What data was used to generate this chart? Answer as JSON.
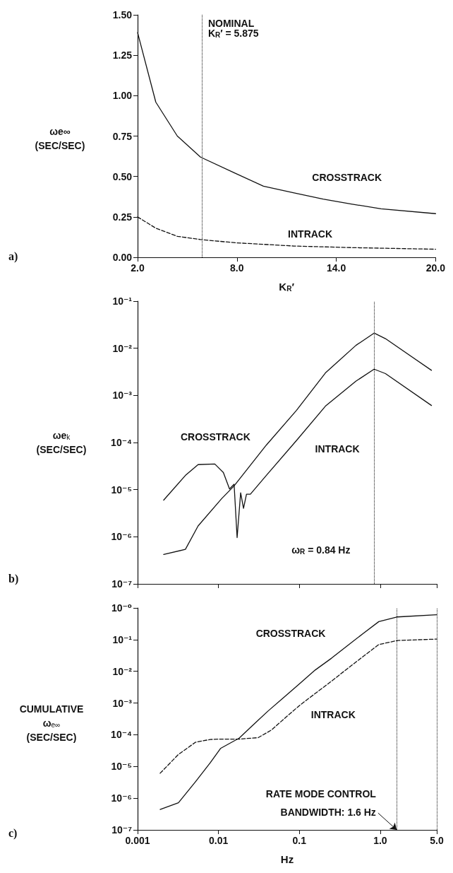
{
  "chart_data": [
    {
      "type": "line",
      "xlabel": "K$_{R}$′",
      "ylabel": "ωe∞\n(SEC/SEC)",
      "xlim": [
        2,
        20
      ],
      "xticks": [
        {
          "value": 2,
          "label": "2.0"
        },
        {
          "value": 8,
          "label": "8.0"
        },
        {
          "value": 14,
          "label": "14.0"
        },
        {
          "value": 20,
          "label": "20.0"
        }
      ],
      "ylim": [
        0,
        1.5
      ],
      "yticks": [
        {
          "value": 0,
          "label": "0.00"
        },
        {
          "value": 0.25,
          "label": "0.25"
        },
        {
          "value": 0.5,
          "label": "0.50"
        },
        {
          "value": 0.75,
          "label": "0.75"
        },
        {
          "value": 1,
          "label": "1.00"
        },
        {
          "value": 1.25,
          "label": "1.25"
        },
        {
          "value": 1.5,
          "label": "1.50"
        }
      ],
      "marker": "none",
      "series": [
        {
          "name": "CROSSTRACK",
          "color": "#111111",
          "line_style": "solid",
          "x": [
            2,
            3.1,
            4.4,
            5.8,
            7.9,
            9.6,
            11.4,
            13.2,
            14.9,
            16.7,
            20
          ],
          "values": [
            1.39,
            0.96,
            0.75,
            0.62,
            0.52,
            0.44,
            0.4,
            0.36,
            0.33,
            0.3,
            0.27
          ]
        },
        {
          "name": "INTRACK",
          "color": "#111111",
          "line_style": "dashed",
          "x": [
            2,
            3.1,
            4.4,
            5.8,
            7.9,
            11.4,
            14.9,
            20
          ],
          "values": [
            0.25,
            0.18,
            0.13,
            0.11,
            0.09,
            0.07,
            0.06,
            0.05
          ]
        }
      ],
      "ref_lines": [
        {
          "axis": "x",
          "value": 5.875,
          "label": "NOMINAL\nK$_{R}$′ = 5.875",
          "color": "#111111",
          "line_style": "dotted"
        }
      ],
      "annotations": [
        "a)"
      ]
    },
    {
      "type": "line",
      "ylabel": "ωe$_{k}$\n(SEC/SEC)",
      "log": "xy",
      "tick_labels": "y",
      "xlim": [
        0.001,
        5
      ],
      "xticks": [
        0.001,
        0.01,
        0.1,
        1,
        5
      ],
      "ylim": [
        1e-07,
        0.1
      ],
      "yticks": [
        {
          "value": 0.1,
          "label": "10⁻¹"
        },
        {
          "value": 0.01,
          "label": "10⁻²"
        },
        {
          "value": 0.001,
          "label": "10⁻³"
        },
        {
          "value": 0.0001,
          "label": "10⁻⁴"
        },
        {
          "value": 1e-05,
          "label": "10⁻⁵"
        },
        {
          "value": 1e-06,
          "label": "10⁻⁶"
        },
        {
          "value": 1e-07,
          "label": "10⁻⁷"
        }
      ],
      "marker": "none",
      "series": [
        {
          "name": "CROSSTRACK",
          "color": "#111111",
          "line_style": "solid",
          "x": [
            0.0021,
            0.0039,
            0.0056,
            0.011,
            0.0156,
            0.039,
            0.092,
            0.21,
            0.5,
            0.84,
            1.16,
            4.3
          ],
          "values": [
            4.2e-07,
            5.4e-07,
            1.7e-06,
            6.5e-06,
            1.2e-05,
            8.8e-05,
            0.00048,
            0.003,
            0.0115,
            0.021,
            0.016,
            0.0034
          ]
        },
        {
          "name": "INTRACK",
          "color": "#111111",
          "line_style": "solid",
          "x": [
            0.0021,
            0.0039,
            0.0056,
            0.009,
            0.0115,
            0.0137,
            0.0156,
            0.017,
            0.0188,
            0.0204,
            0.0222,
            0.0248,
            0.039,
            0.092,
            0.21,
            0.5,
            0.84,
            1.16,
            4.3
          ],
          "values": [
            6e-06,
            2e-05,
            3.4e-05,
            3.5e-05,
            2.3e-05,
            1.03e-05,
            1.3e-05,
            9.6e-07,
            8.6e-06,
            4e-06,
            8e-06,
            8e-06,
            2e-05,
            0.00011,
            0.00059,
            0.002,
            0.0036,
            0.0029,
            0.00061
          ]
        }
      ],
      "ref_lines": [
        {
          "axis": "x",
          "value": 0.84,
          "label": "ω$_{R}$ = 0.84 Hz",
          "color": "#111111",
          "line_style": "dotted"
        }
      ],
      "annotations": [
        "b)"
      ]
    },
    {
      "type": "line",
      "xlabel": "Hz",
      "ylabel": "CUMULATIVE\nω$_{e∞}$\n(SEC/SEC)",
      "log": "xy",
      "xlim": [
        0.001,
        5
      ],
      "xticks": [
        0.001,
        0.01,
        0.1,
        {
          "value": 1,
          "label": "1.0"
        },
        {
          "value": 5,
          "label": "5.0"
        }
      ],
      "ylim": [
        1e-07,
        1
      ],
      "yticks": [
        {
          "value": 1,
          "label": "10⁻⁰"
        },
        {
          "value": 0.1,
          "label": "10⁻¹"
        },
        {
          "value": 0.01,
          "label": "10⁻²"
        },
        {
          "value": 0.001,
          "label": "10⁻³"
        },
        {
          "value": 0.0001,
          "label": "10⁻⁴"
        },
        {
          "value": 1e-05,
          "label": "10⁻⁵"
        },
        {
          "value": 1e-06,
          "label": "10⁻⁶"
        },
        {
          "value": 1e-07,
          "label": "10⁻⁷"
        }
      ],
      "marker": "none",
      "series": [
        {
          "name": "CROSSTRACK",
          "color": "#111111",
          "line_style": "solid",
          "x": [
            0.0019,
            0.0032,
            0.0052,
            0.0079,
            0.0106,
            0.018,
            0.026,
            0.041,
            0.064,
            0.1,
            0.157,
            0.25,
            0.39,
            0.61,
            0.96,
            1.64,
            5
          ],
          "values": [
            4.4e-07,
            7.2e-07,
            3.3e-06,
            1.3e-05,
            3.7e-05,
            7.8e-05,
            0.00019,
            0.00056,
            0.0015,
            0.004,
            0.011,
            0.026,
            0.063,
            0.154,
            0.37,
            0.52,
            0.61
          ]
        },
        {
          "name": "INTRACK",
          "color": "#111111",
          "line_style": "dashed",
          "x": [
            0.0019,
            0.0032,
            0.0052,
            0.0079,
            0.0106,
            0.018,
            0.031,
            0.045,
            0.064,
            0.1,
            0.157,
            0.25,
            0.39,
            0.61,
            0.96,
            1.64,
            5
          ],
          "values": [
            6.1e-06,
            2.4e-05,
            5.8e-05,
            7.1e-05,
            7.3e-05,
            7.3e-05,
            8.1e-05,
            0.00014,
            0.00031,
            0.00083,
            0.002,
            0.0049,
            0.012,
            0.029,
            0.07,
            0.094,
            0.104
          ]
        }
      ],
      "ref_lines": [
        {
          "axis": "x",
          "value": 1.6,
          "color": "#111111",
          "line_style": "dotted"
        },
        {
          "axis": "x",
          "value": 5,
          "color": "#111111",
          "line_style": "dotted"
        }
      ],
      "annotations": [
        {
          "text": "RATE MODE CONTROL\nBANDWIDTH: 1.6 Hz",
          "x": 1.6,
          "y": 1e-07
        },
        "c)"
      ]
    }
  ]
}
